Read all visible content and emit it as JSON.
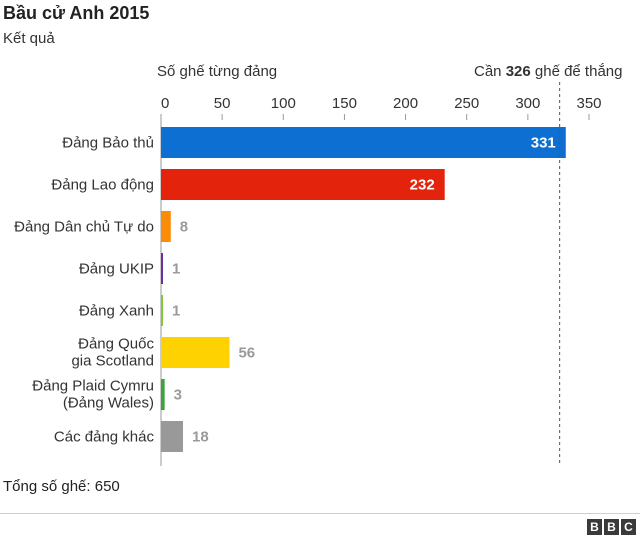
{
  "header": {
    "title": "Bầu cử Anh 2015",
    "subtitle": "Kết quả"
  },
  "footer": {
    "total": "Tổng số ghế: 650",
    "brand_letters": [
      "B",
      "B",
      "C"
    ]
  },
  "chart_data": {
    "type": "bar",
    "orientation": "horizontal",
    "xlabel": "Số ghế từng đảng",
    "xlim": [
      0,
      350
    ],
    "xticks": [
      0,
      50,
      100,
      150,
      200,
      250,
      300,
      350
    ],
    "grid": false,
    "reference_line": {
      "value": 326,
      "label_before": "Cần ",
      "label_value": "326",
      "label_after": " ghế để thắng"
    },
    "categories": [
      [
        "Đảng Bảo thủ"
      ],
      [
        "Đảng Lao động"
      ],
      [
        "Đảng Dân chủ Tự do"
      ],
      [
        "Đảng UKIP"
      ],
      [
        "Đảng Xanh"
      ],
      [
        "Đảng Quốc",
        "gia Scotland"
      ],
      [
        "Đảng Plaid Cymru",
        "(Đảng Wales)"
      ],
      [
        "Các đảng khác"
      ]
    ],
    "values": [
      331,
      232,
      8,
      1,
      1,
      56,
      3,
      18
    ],
    "colors": [
      "#0d6fd1",
      "#e4230c",
      "#fb8c07",
      "#6e2ea1",
      "#7ec83b",
      "#fed100",
      "#3ba33b",
      "#999999"
    ],
    "label_inside": [
      true,
      true,
      false,
      false,
      false,
      false,
      false,
      false
    ],
    "label_color_inside": "#ffffff",
    "label_color_outside": "#9a9a9a"
  }
}
